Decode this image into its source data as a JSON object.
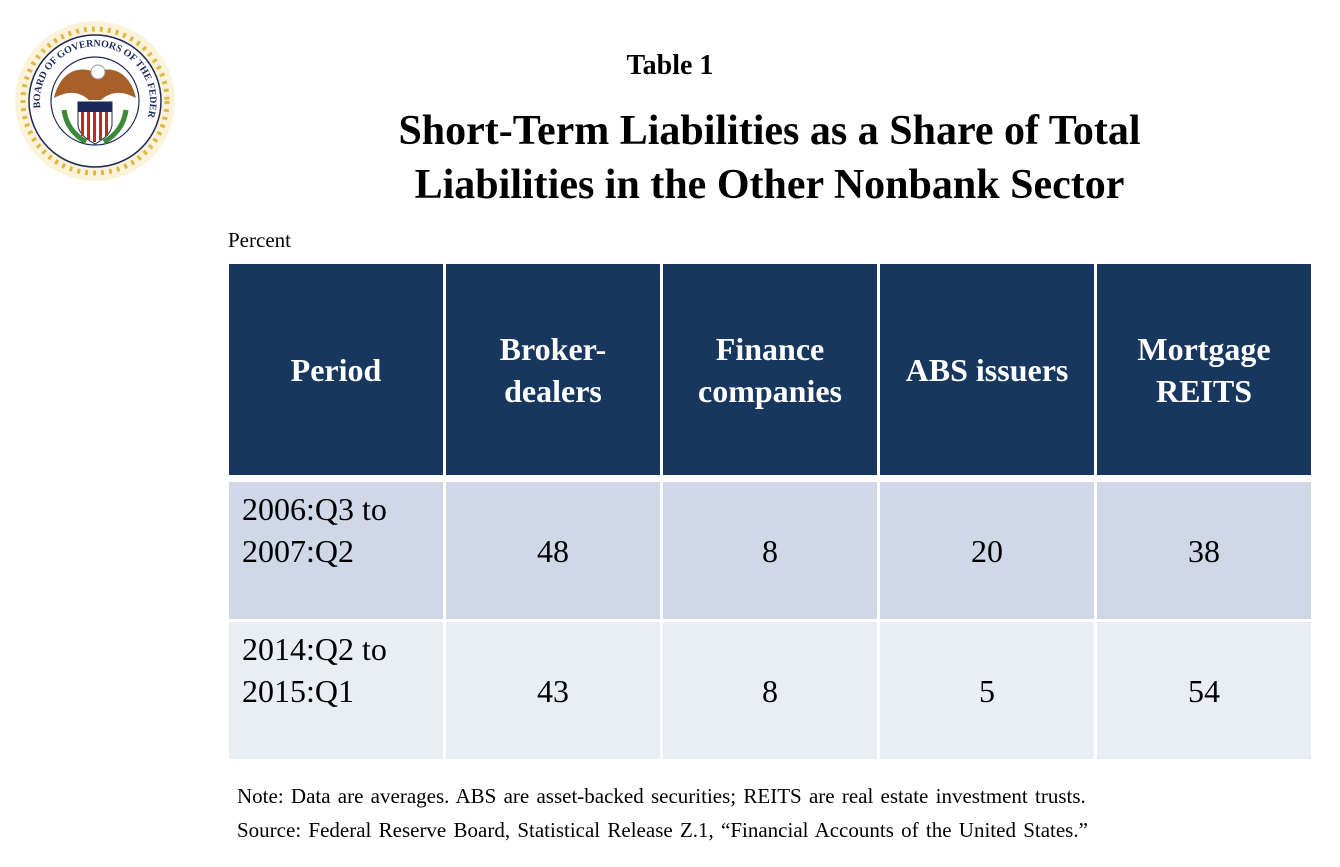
{
  "logo": {
    "text": "BOARD OF GOVERNORS OF THE FEDERAL RESERVE SYSTEM"
  },
  "table_number": "Table 1",
  "title_line1": "Short-Term Liabilities as a Share of Total",
  "title_line2": "Liabilities in the Other Nonbank Sector",
  "unit": "Percent",
  "colors": {
    "header": "#17375e",
    "row_odd": "#d0d8e8",
    "row_even": "#e9edf4"
  },
  "chart_data": {
    "type": "table",
    "title": "Short-Term Liabilities as a Share of Total Liabilities in the Other Nonbank Sector",
    "columns": [
      {
        "line1": "Period",
        "line2": ""
      },
      {
        "line1": "Broker-",
        "line2": "dealers"
      },
      {
        "line1": "Finance",
        "line2": "companies"
      },
      {
        "line1": "ABS issuers",
        "line2": ""
      },
      {
        "line1": "Mortgage",
        "line2": "REITS"
      }
    ],
    "rows": [
      {
        "period1": "2006:Q3 to",
        "period2": "2007:Q2",
        "values": [
          "48",
          "8",
          "20",
          "38"
        ]
      },
      {
        "period1": "2014:Q2 to",
        "period2": "2015:Q1",
        "values": [
          "43",
          "8",
          "5",
          "54"
        ]
      }
    ]
  },
  "note": "Note:  Data are averages.  ABS are asset-backed securities; REITS are real estate investment trusts.",
  "source": "Source:  Federal Reserve Board, Statistical Release Z.1, “Financial Accounts of the United States.”"
}
